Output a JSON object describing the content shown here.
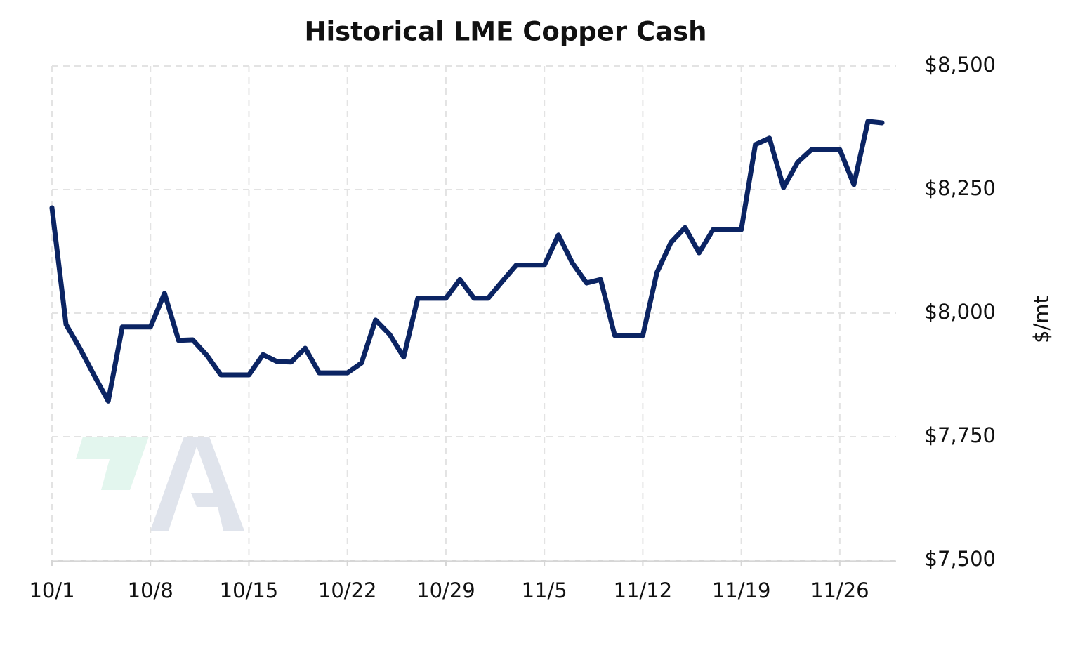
{
  "chart_data": {
    "type": "line",
    "title": "Historical LME Copper Cash",
    "y_label": "$/mt",
    "x": [
      0,
      1,
      2,
      3,
      4,
      5,
      6,
      7,
      8,
      9,
      10,
      11,
      12,
      13,
      14,
      15,
      16,
      17,
      18,
      19,
      20,
      21,
      22,
      23,
      24,
      25,
      26,
      27,
      28,
      29,
      30,
      31,
      32,
      33,
      34,
      35,
      36,
      37,
      38,
      39,
      40,
      41,
      42,
      43,
      44,
      45,
      46,
      47,
      48,
      49,
      50,
      51,
      52,
      53,
      54,
      55,
      56,
      57,
      58,
      59
    ],
    "xlim": [
      0,
      60
    ],
    "xticks": [
      {
        "value": 0,
        "label": "10/1"
      },
      {
        "value": 7,
        "label": "10/8"
      },
      {
        "value": 14,
        "label": "10/15"
      },
      {
        "value": 21,
        "label": "10/22"
      },
      {
        "value": 28,
        "label": "10/29"
      },
      {
        "value": 35,
        "label": "11/5"
      },
      {
        "value": 42,
        "label": "11/12"
      },
      {
        "value": 49,
        "label": "11/19"
      },
      {
        "value": 56,
        "label": "11/26"
      }
    ],
    "ylim": [
      7500,
      8500
    ],
    "yticks": [
      {
        "value": 7500,
        "label": "$7,500"
      },
      {
        "value": 7750,
        "label": "$7,750"
      },
      {
        "value": 8000,
        "label": "$8,000"
      },
      {
        "value": 8250,
        "label": "$8,250"
      },
      {
        "value": 8500,
        "label": "$8,500"
      }
    ],
    "grid": true,
    "series": [
      {
        "color": "#0b2463",
        "values": [
          8213,
          7977,
          7928,
          7874,
          7822,
          7972,
          7972,
          7972,
          8040,
          7945,
          7946,
          7915,
          7875,
          7875,
          7875,
          7916,
          7902,
          7901,
          7929,
          7879,
          7879,
          7879,
          7899,
          7986,
          7957,
          7911,
          8030,
          8030,
          8030,
          8068,
          8030,
          8030,
          8064,
          8097,
          8097,
          8097,
          8158,
          8101,
          8061,
          8068,
          7955,
          7955,
          7955,
          8082,
          8143,
          8173,
          8122,
          8169,
          8169,
          8169,
          8341,
          8354,
          8254,
          8305,
          8331,
          8331,
          8331,
          8260,
          8388,
          8385
        ]
      }
    ]
  }
}
